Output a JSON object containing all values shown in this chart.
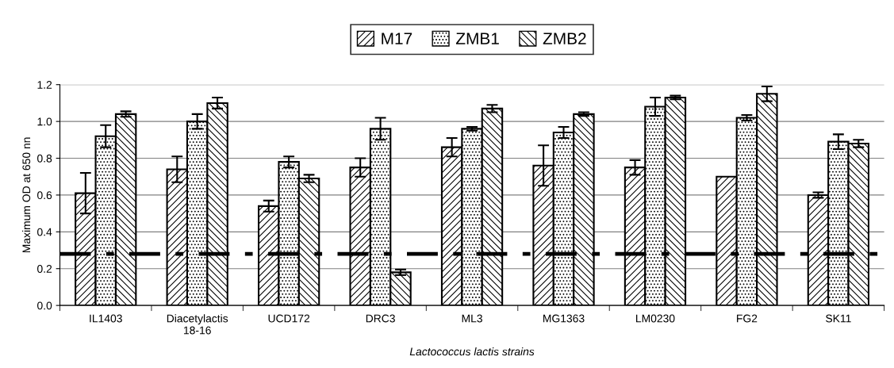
{
  "chart_data": {
    "type": "bar",
    "categories": [
      "IL1403",
      "Diacetylactis\n18-16",
      "UCD172",
      "DRC3",
      "ML3",
      "MG1363",
      "LM0230",
      "FG2",
      "SK11"
    ],
    "series": [
      {
        "name": "M17",
        "color": "#000000",
        "values": [
          0.61,
          0.74,
          0.54,
          0.75,
          0.86,
          0.76,
          0.75,
          0.7,
          0.6
        ],
        "errors": [
          0.11,
          0.07,
          0.03,
          0.05,
          0.05,
          0.11,
          0.04,
          null,
          0.015
        ]
      },
      {
        "name": "ZMB1",
        "color": "#000000",
        "values": [
          0.92,
          1.0,
          0.78,
          0.96,
          0.96,
          0.94,
          1.08,
          1.02,
          0.89
        ],
        "errors": [
          0.06,
          0.04,
          0.03,
          0.06,
          0.01,
          0.03,
          0.05,
          0.015,
          0.04
        ]
      },
      {
        "name": "ZMB2",
        "color": "#000000",
        "values": [
          1.04,
          1.1,
          0.69,
          0.18,
          1.07,
          1.04,
          1.13,
          1.15,
          0.88
        ],
        "errors": [
          0.015,
          0.03,
          0.02,
          0.015,
          0.02,
          0.01,
          0.01,
          0.04,
          0.02
        ]
      }
    ],
    "xlabel": "Lactococcus lactis strains",
    "ylabel": "Maximum OD at 650 nn",
    "ylim": [
      0,
      1.2
    ],
    "yticks": [
      {
        "value": 0,
        "label": "0.0"
      },
      0.2,
      0.4,
      0.6,
      0.8,
      {
        "value": 1.0,
        "label": "1.0"
      },
      1.2
    ],
    "grid": "y",
    "legend": "top",
    "ref_lines": [
      {
        "axis": "y",
        "value": 0.28,
        "color": "#000000",
        "line_style": "dashdot"
      }
    ]
  }
}
